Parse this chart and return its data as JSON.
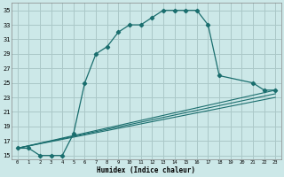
{
  "title": "",
  "xlabel": "Humidex (Indice chaleur)",
  "ylabel": "",
  "bg_color": "#cce8e8",
  "grid_color": "#aac8c8",
  "line_color": "#1a6e6e",
  "xlim": [
    -0.5,
    23.5
  ],
  "ylim": [
    14.5,
    36
  ],
  "xticks": [
    0,
    1,
    2,
    3,
    4,
    5,
    6,
    7,
    8,
    9,
    10,
    11,
    12,
    13,
    14,
    15,
    16,
    17,
    18,
    19,
    20,
    21,
    22,
    23
  ],
  "yticks": [
    15,
    17,
    19,
    21,
    23,
    25,
    27,
    29,
    31,
    33,
    35
  ],
  "curve_main": {
    "x": [
      0,
      1,
      2,
      3,
      4,
      5,
      6,
      7,
      8,
      9,
      10,
      11,
      12,
      13,
      14,
      15,
      16,
      17,
      18,
      21,
      22,
      23
    ],
    "y": [
      16,
      16,
      15,
      15,
      15,
      18,
      25,
      29,
      30,
      32,
      33,
      33,
      34,
      35,
      35,
      35,
      35,
      33,
      26,
      25,
      24,
      24
    ]
  },
  "curves_secondary": [
    {
      "x": [
        0,
        4,
        23
      ],
      "y": [
        16,
        15,
        24
      ]
    },
    {
      "x": [
        0,
        4,
        23
      ],
      "y": [
        16,
        15,
        23
      ]
    },
    {
      "x": [
        0,
        4,
        23
      ],
      "y": [
        16,
        15,
        23
      ]
    }
  ]
}
